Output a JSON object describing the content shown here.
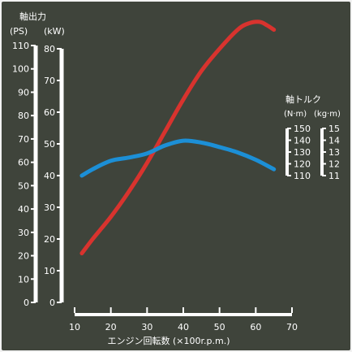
{
  "chart_data": {
    "type": "line",
    "labels": {
      "power_title": "軸出力",
      "power_unit_ps": "(PS)",
      "power_unit_kw": "(kW)",
      "torque_title": "軸トルク",
      "torque_unit_nm": "(N·m)",
      "torque_unit_kgm": "(kg·m)",
      "xlabel": "エンジン回転数 (×100r.p.m.)"
    },
    "x_axis": {
      "ticks": [
        10,
        20,
        30,
        40,
        50,
        60,
        70
      ],
      "range": [
        10,
        70
      ]
    },
    "power_ps_axis": {
      "ticks": [
        0,
        10,
        20,
        30,
        40,
        50,
        60,
        70,
        80,
        90,
        100,
        110
      ],
      "range": [
        0,
        110
      ]
    },
    "power_kw_axis": {
      "ticks": [
        0,
        10,
        20,
        30,
        40,
        50,
        60,
        70,
        80
      ],
      "range": [
        0,
        80
      ]
    },
    "torque_nm_axis": {
      "ticks": [
        110,
        120,
        130,
        140,
        150
      ],
      "range": [
        110,
        150
      ]
    },
    "torque_kgm_axis": {
      "ticks": [
        11,
        12,
        13,
        14,
        15
      ],
      "range": [
        11,
        15
      ]
    },
    "series": [
      {
        "color": "#d8332e",
        "axis": "power_kw",
        "x": [
          12,
          15,
          20,
          25,
          30,
          35,
          40,
          45,
          50,
          55,
          58,
          61,
          63,
          65
        ],
        "y": [
          15.5,
          20,
          27,
          35,
          44,
          54,
          64,
          73,
          80,
          86,
          88,
          88.5,
          87.5,
          86
        ]
      },
      {
        "color": "#1c8fd6",
        "axis": "power_kw",
        "x": [
          12,
          15,
          20,
          25,
          30,
          35,
          40,
          45,
          50,
          55,
          60,
          65
        ],
        "y": [
          40,
          42,
          44.7,
          45.7,
          47,
          49.5,
          51,
          50.4,
          49,
          47.3,
          45,
          42
        ]
      }
    ]
  }
}
